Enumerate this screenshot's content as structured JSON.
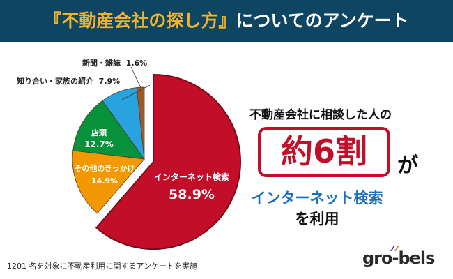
{
  "header": {
    "title_highlight": "『不動産会社の探し方』",
    "title_rest": "についてのアンケート"
  },
  "chart_data": {
    "type": "pie",
    "start": "top, clockwise, largest slice exploded",
    "slices": [
      {
        "label": "インターネット検索",
        "value": 58.9,
        "value_label": "58.9%",
        "color": "#c20e28"
      },
      {
        "label": "その他のきっかけ",
        "value": 14.9,
        "value_label": "14.9%",
        "color": "#f39800"
      },
      {
        "label": "店頭",
        "value": 12.7,
        "value_label": "12.7%",
        "color": "#06913a"
      },
      {
        "label": "知り合い・家族の紹介",
        "value": 7.9,
        "value_label": "7.9%",
        "color": "#29a3e0"
      },
      {
        "label": "新聞・雑誌",
        "value": 1.6,
        "value_label": "1.6%",
        "color": "#9b5a2c"
      }
    ]
  },
  "callout": {
    "line1": "不動産会社に相談した人の",
    "big": "約6割",
    "particle": "が",
    "method": "インターネット検索",
    "line4": "を利用"
  },
  "footnote": "1201 名を対象に不動産利用に関するアンケートを実施",
  "logo": "gro-bels"
}
